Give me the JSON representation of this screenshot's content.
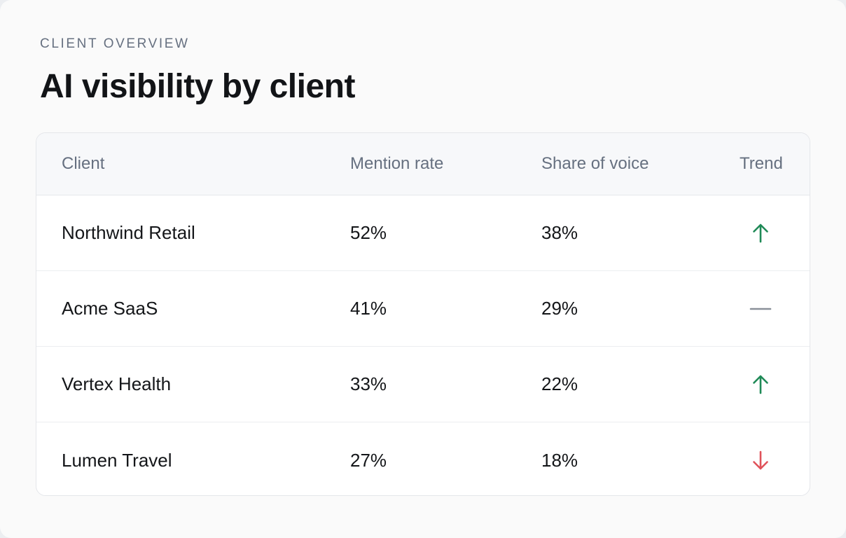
{
  "header": {
    "eyebrow": "CLIENT OVERVIEW",
    "title": "AI visibility by client"
  },
  "table": {
    "columns": [
      "Client",
      "Mention rate",
      "Share of voice",
      "Trend"
    ],
    "rows": [
      {
        "client": "Northwind Retail",
        "mention_rate": "52%",
        "share_of_voice": "38%",
        "trend": "up"
      },
      {
        "client": "Acme SaaS",
        "mention_rate": "41%",
        "share_of_voice": "29%",
        "trend": "flat"
      },
      {
        "client": "Vertex Health",
        "mention_rate": "33%",
        "share_of_voice": "22%",
        "trend": "up"
      },
      {
        "client": "Lumen Travel",
        "mention_rate": "27%",
        "share_of_voice": "18%",
        "trend": "down"
      }
    ]
  },
  "icons": {
    "up": "arrow-up-icon",
    "flat": "dash-icon",
    "down": "arrow-down-icon"
  },
  "colors": {
    "up": "#1f8a57",
    "flat": "#8a9099",
    "down": "#e0525a"
  }
}
